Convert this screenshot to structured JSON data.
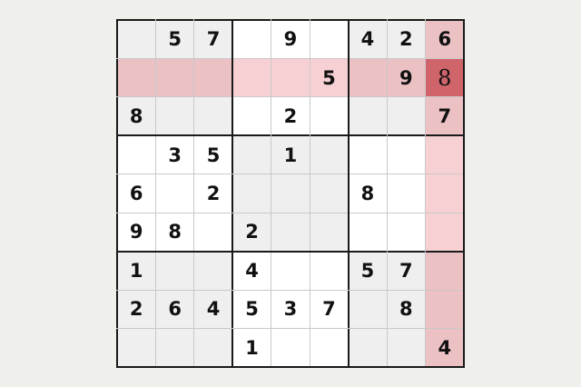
{
  "puzzle": {
    "rows": [
      ". 5 7 . 9 . 4 2 6",
      ". . . . . 5 . 9 .",
      "8 . . . 2 . . . 7",
      ". 3 5 . 1 . . . .",
      "6 . 2 . . . 8 . .",
      "9 8 . 2 . . . . .",
      "1 . . 4 . . 5 7 .",
      "2 6 4 5 3 7 . 8 .",
      ". . . 1 . . . . 4"
    ],
    "entered": [
      {
        "row": 2,
        "col": 9,
        "value": "8"
      }
    ],
    "selected": {
      "row": 2,
      "col": 9
    }
  },
  "colors": {
    "box_shaded": "#efefef",
    "box_plain": "#ffffff",
    "highlight_on_shaded": "#ebc1c4",
    "highlight_on_plain": "#f7d0d3",
    "selected": "#d0646b"
  }
}
